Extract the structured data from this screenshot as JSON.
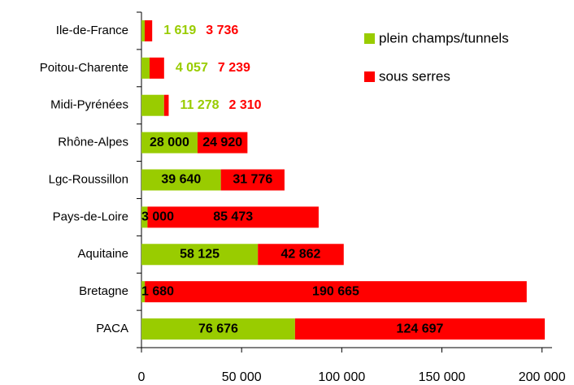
{
  "chart_data": {
    "type": "stacked-barh",
    "categories": [
      "Ile-de-France",
      "Poitou-Charente",
      "Midi-Pyrénées",
      "Rhône-Alpes",
      "Lgc-Roussillon",
      "Pays-de-Loire",
      "Aquitaine",
      "Bretagne",
      "PACA"
    ],
    "series": [
      {
        "name": "plein champs/tunnels",
        "color": "#99cc00",
        "values": [
          1619,
          4057,
          11278,
          28000,
          39640,
          3000,
          58125,
          1680,
          76676
        ],
        "value_labels": [
          "1 619",
          "4 057",
          "11 278",
          "28 000",
          "39 640",
          "3 000",
          "58 125",
          "1 680",
          "76 676"
        ]
      },
      {
        "name": "sous serres",
        "color": "#ff0000",
        "values": [
          3736,
          7239,
          2310,
          24920,
          31776,
          85473,
          42862,
          190665,
          124697
        ],
        "value_labels": [
          "3 736",
          "7 239",
          "2 310",
          "24 920",
          "31 776",
          "85 473",
          "42 862",
          "190 665",
          "124 697"
        ]
      }
    ],
    "xlim": [
      0,
      205000
    ],
    "xticks": [
      0,
      {
        "value": 50000,
        "label": "50 000"
      },
      {
        "value": 100000,
        "label": "100 000"
      },
      {
        "value": 150000,
        "label": "150 000"
      },
      {
        "value": 200000,
        "label": "200 000"
      }
    ],
    "legend": "top-right"
  }
}
